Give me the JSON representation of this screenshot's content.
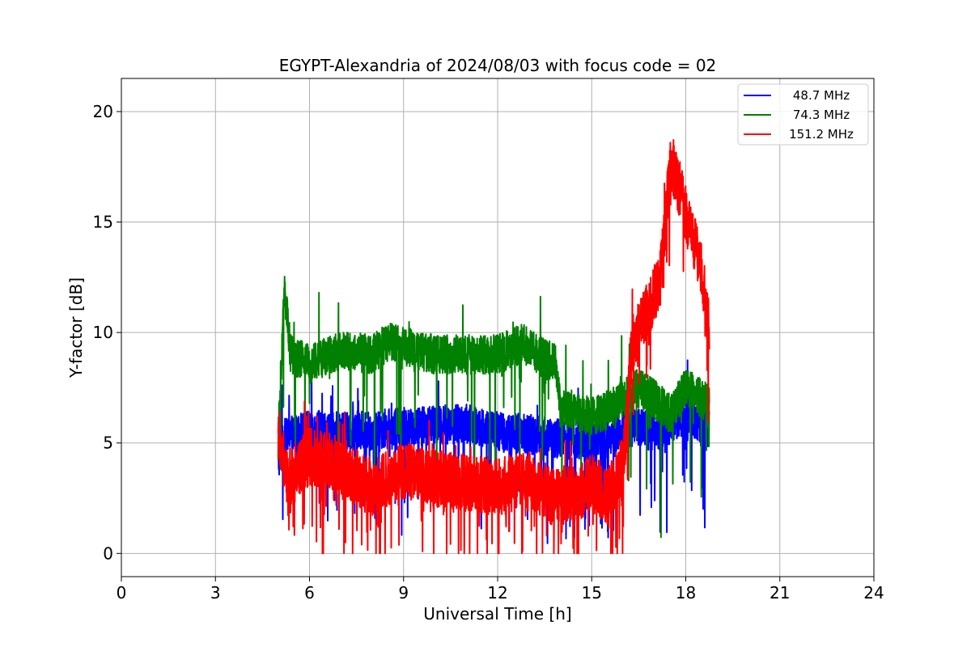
{
  "chart_data": {
    "type": "line",
    "title": "EGYPT-Alexandria of 2024/08/03 with focus code = 02",
    "xlabel": "Universal Time [h]",
    "ylabel": "Y-factor [dB]",
    "xlim": [
      0,
      24
    ],
    "ylim": [
      -1.05,
      21.5
    ],
    "xticks": [
      0,
      3,
      6,
      9,
      12,
      15,
      18,
      21,
      24
    ],
    "yticks": [
      0,
      5,
      10,
      15,
      20
    ],
    "grid": true,
    "legend_position": "top-right",
    "series": [
      {
        "name": "48.7 MHz",
        "color": "#0000ff",
        "start": 5.0,
        "end": 18.75,
        "noise_amp": 0.9,
        "spike_rate": 0.05,
        "spike_depth": 4.5,
        "keypoints": [
          [
            5.0,
            4.2
          ],
          [
            5.2,
            5.2
          ],
          [
            6.0,
            5.6
          ],
          [
            7.0,
            5.5
          ],
          [
            8.0,
            5.6
          ],
          [
            9.0,
            5.7
          ],
          [
            10.0,
            5.8
          ],
          [
            11.0,
            5.9
          ],
          [
            12.0,
            5.5
          ],
          [
            13.0,
            5.4
          ],
          [
            14.0,
            5.2
          ],
          [
            15.0,
            5.0
          ],
          [
            16.0,
            5.6
          ],
          [
            16.5,
            5.8
          ],
          [
            17.0,
            5.4
          ],
          [
            17.5,
            5.8
          ],
          [
            18.0,
            6.3
          ],
          [
            18.5,
            5.9
          ],
          [
            18.75,
            5.6
          ]
        ]
      },
      {
        "name": "74.3 MHz",
        "color": "#008000",
        "start": 5.0,
        "end": 18.75,
        "noise_amp": 0.9,
        "spike_rate": 0.035,
        "spike_depth": 5.5,
        "keypoints": [
          [
            5.0,
            5.0
          ],
          [
            5.2,
            12.0
          ],
          [
            5.4,
            9.0
          ],
          [
            6.0,
            8.6
          ],
          [
            7.0,
            9.2
          ],
          [
            8.0,
            9.0
          ],
          [
            8.5,
            9.6
          ],
          [
            9.0,
            9.4
          ],
          [
            10.0,
            9.0
          ],
          [
            11.0,
            9.0
          ],
          [
            12.0,
            9.0
          ],
          [
            12.8,
            9.5
          ],
          [
            13.5,
            8.8
          ],
          [
            13.85,
            8.6
          ],
          [
            14.0,
            6.5
          ],
          [
            15.0,
            6.2
          ],
          [
            15.5,
            6.5
          ],
          [
            16.0,
            7.0
          ],
          [
            16.5,
            7.5
          ],
          [
            17.0,
            7.0
          ],
          [
            17.5,
            6.3
          ],
          [
            18.0,
            7.6
          ],
          [
            18.5,
            7.0
          ],
          [
            18.75,
            6.8
          ]
        ]
      },
      {
        "name": "151.2 MHz",
        "color": "#ff0000",
        "start": 5.0,
        "end": 18.75,
        "noise_amp": 1.3,
        "spike_rate": 0.07,
        "spike_depth": 4.0,
        "keypoints": [
          [
            5.0,
            5.5
          ],
          [
            5.3,
            3.2
          ],
          [
            6.0,
            4.4
          ],
          [
            7.0,
            4.0
          ],
          [
            8.0,
            3.0
          ],
          [
            9.0,
            3.8
          ],
          [
            10.0,
            3.4
          ],
          [
            11.0,
            3.2
          ],
          [
            12.0,
            3.0
          ],
          [
            13.0,
            3.4
          ],
          [
            13.8,
            2.5
          ],
          [
            14.5,
            2.7
          ],
          [
            15.0,
            3.2
          ],
          [
            15.5,
            2.6
          ],
          [
            16.0,
            4.0
          ],
          [
            16.3,
            9.5
          ],
          [
            16.8,
            11.0
          ],
          [
            17.2,
            12.5
          ],
          [
            17.5,
            17.5
          ],
          [
            17.7,
            17.0
          ],
          [
            18.0,
            15.5
          ],
          [
            18.3,
            14.0
          ],
          [
            18.5,
            13.0
          ],
          [
            18.75,
            10.0
          ]
        ]
      }
    ]
  }
}
